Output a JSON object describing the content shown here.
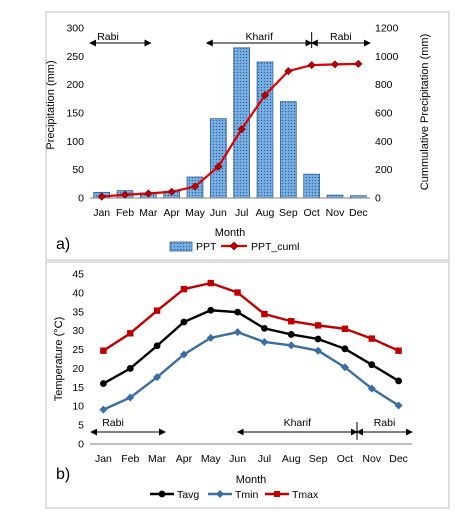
{
  "chart_data": [
    {
      "panel_label": "a)",
      "type": "bar+line",
      "xlabel": "Month",
      "ylabel_left": "Precipitation (mm)",
      "ylabel_right": "Cummulative Precipitation (mm)",
      "categories": [
        "Jan",
        "Feb",
        "Mar",
        "Apr",
        "May",
        "Jun",
        "Jul",
        "Aug",
        "Sep",
        "Oct",
        "Nov",
        "Dec"
      ],
      "ylim_left": [
        0,
        300
      ],
      "yticks_left": [
        0,
        50,
        100,
        150,
        200,
        250,
        300
      ],
      "ylim_right": [
        0,
        1200
      ],
      "yticks_right": [
        0,
        200,
        400,
        600,
        800,
        1000,
        1200
      ],
      "grid": false,
      "legend_placement": "bottom",
      "series": [
        {
          "name": "PPT",
          "kind": "bar",
          "axis": "left",
          "color": "#6fa8dc",
          "values": [
            10,
            13,
            9,
            12,
            37,
            140,
            265,
            240,
            170,
            42,
            5,
            4
          ]
        },
        {
          "name": "PPT_cuml",
          "kind": "line",
          "axis": "right",
          "color": "#e00000",
          "values": [
            10,
            23,
            32,
            44,
            81,
            221,
            486,
            726,
            896,
            938,
            943,
            947
          ]
        }
      ],
      "seasons": [
        {
          "label": "Rabi",
          "from": "Jan",
          "to": "Mar"
        },
        {
          "label": "Kharif",
          "from": "Jun",
          "to": "Oct"
        },
        {
          "label": "Rabi",
          "from": "Oct",
          "to": "Dec"
        }
      ]
    },
    {
      "panel_label": "b)",
      "type": "line",
      "xlabel": "Month",
      "ylabel": "Temperature (°C)",
      "categories": [
        "Jan",
        "Feb",
        "Mar",
        "Apr",
        "May",
        "Jun",
        "Jul",
        "Aug",
        "Sep",
        "Oct",
        "Nov",
        "Dec"
      ],
      "ylim": [
        0,
        45
      ],
      "yticks": [
        0,
        5,
        10,
        15,
        20,
        25,
        30,
        35,
        40,
        45
      ],
      "grid": false,
      "legend_placement": "bottom",
      "series": [
        {
          "name": "Tavg",
          "color": "#000000",
          "marker": "circle",
          "values": [
            16.0,
            20.0,
            26.0,
            32.3,
            35.4,
            34.9,
            30.6,
            29.0,
            27.8,
            25.2,
            21.0,
            16.7
          ]
        },
        {
          "name": "Tmin",
          "color": "#3a6ea5",
          "marker": "diamond",
          "values": [
            9.1,
            12.3,
            17.7,
            23.7,
            28.1,
            29.6,
            27.0,
            26.1,
            24.7,
            20.3,
            14.7,
            10.2
          ]
        },
        {
          "name": "Tmax",
          "color": "#c00000",
          "marker": "square",
          "values": [
            24.7,
            29.3,
            35.3,
            41.0,
            42.6,
            40.1,
            34.4,
            32.5,
            31.4,
            30.5,
            27.9,
            24.7
          ]
        }
      ],
      "seasons": [
        {
          "label": "Rabi",
          "from": "Jan",
          "to": "Mar"
        },
        {
          "label": "Kharif",
          "from": "Jun",
          "to": "Oct"
        },
        {
          "label": "Rabi",
          "from": "Oct",
          "to": "Dec"
        }
      ]
    }
  ]
}
